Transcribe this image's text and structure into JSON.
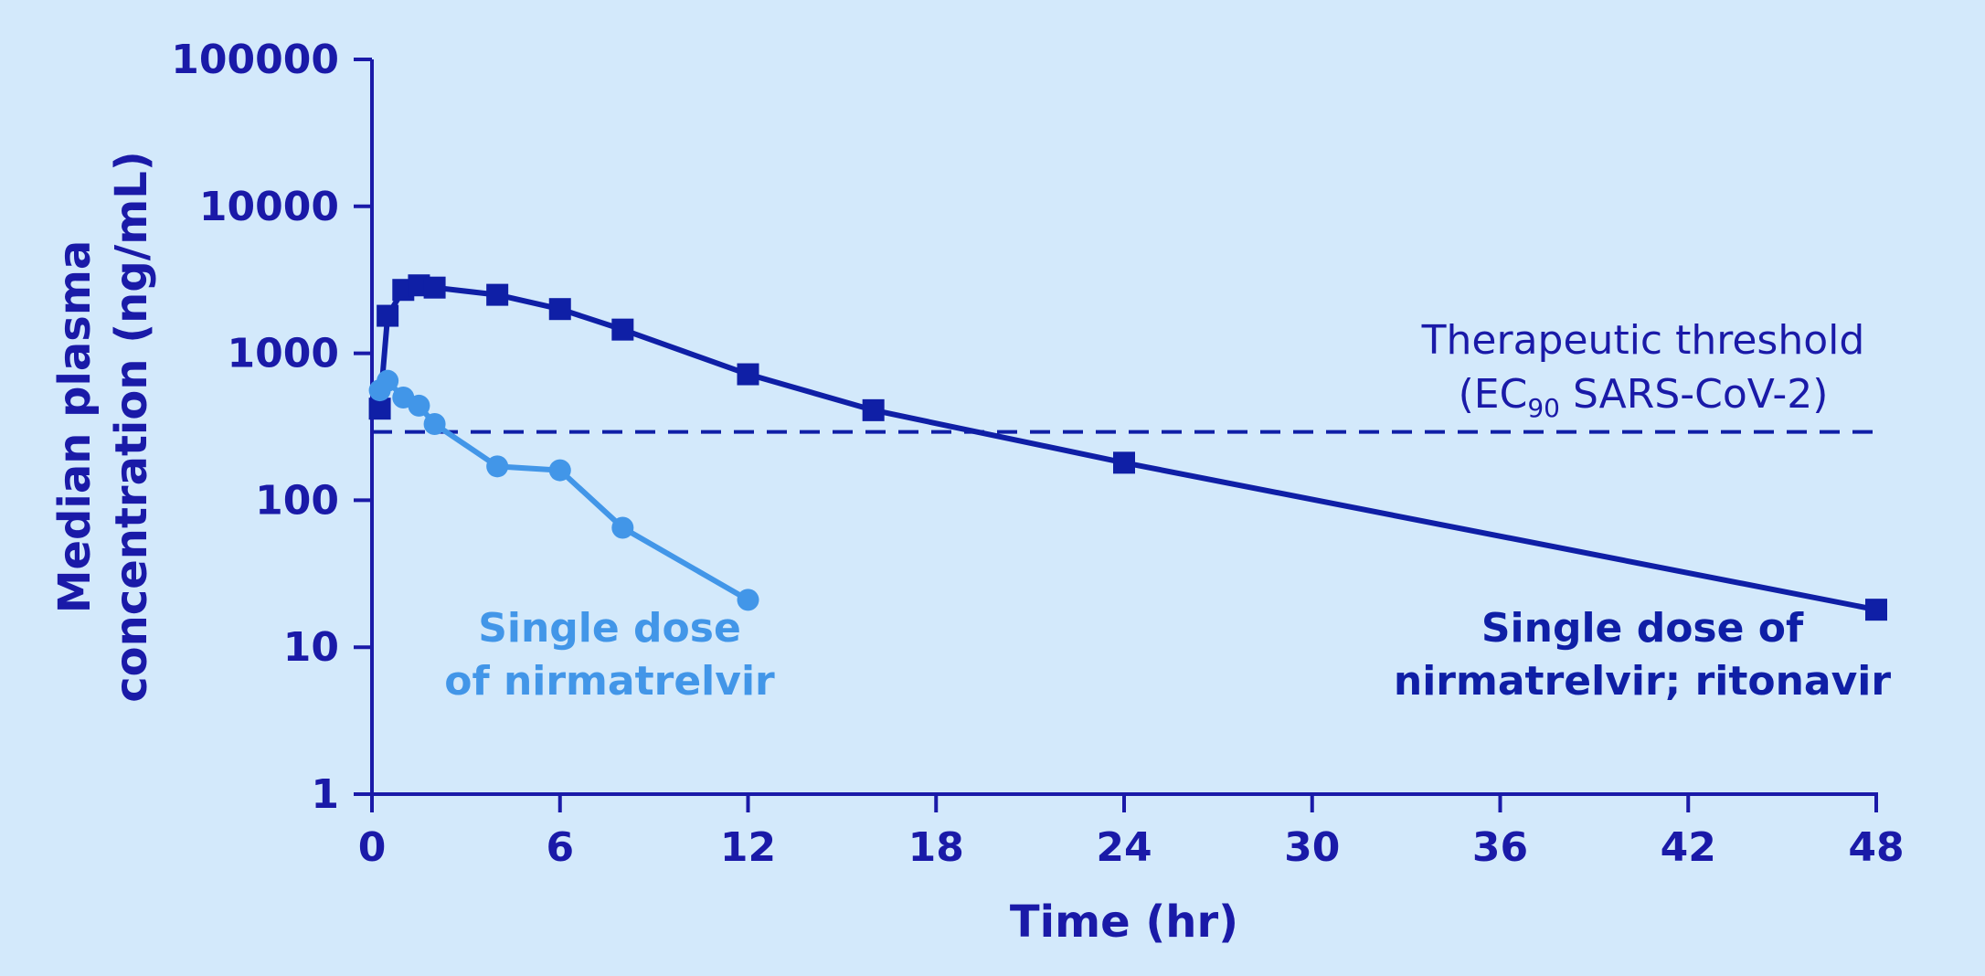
{
  "chart_data": {
    "type": "line",
    "xlabel": "Time (hr)",
    "ylabel_lines": [
      "Median plasma",
      "concentration (ng/mL)"
    ],
    "xlim": [
      0,
      48
    ],
    "ylim": [
      1,
      100000
    ],
    "yscale": "log",
    "x_ticks": [
      0,
      6,
      12,
      18,
      24,
      30,
      36,
      42,
      48
    ],
    "x_tick_labels": [
      "0",
      "6",
      "12",
      "18",
      "24",
      "30",
      "36",
      "42",
      "48"
    ],
    "y_ticks": [
      1,
      10,
      100,
      1000,
      10000,
      100000
    ],
    "y_tick_labels": [
      "1",
      "10",
      "100",
      "1000",
      "10000",
      "100000"
    ],
    "grid": false,
    "colors": {
      "dark": "#0f1fa6",
      "light": "#4296e8",
      "axis": "#1a1aa8",
      "background": "#d3e9fb"
    },
    "series": [
      {
        "marker": "square",
        "color": "#0f1fa6",
        "x": [
          0.25,
          0.5,
          1,
          1.5,
          2,
          4,
          6,
          8,
          12,
          16,
          24,
          48
        ],
        "y": [
          420,
          1800,
          2700,
          2900,
          2800,
          2500,
          2000,
          1450,
          720,
          410,
          180,
          18
        ]
      },
      {
        "marker": "circle",
        "color": "#4296e8",
        "x": [
          0.25,
          0.5,
          1,
          1.5,
          2,
          4,
          6,
          8,
          12
        ],
        "y": [
          560,
          650,
          500,
          440,
          330,
          170,
          160,
          65,
          21
        ]
      }
    ],
    "annotations": {
      "dark_series_label": [
        "Single dose of",
        "nirmatrelvir; ritonavir"
      ],
      "light_series_label": [
        "Single dose",
        "of nirmatrelvir"
      ],
      "threshold_line1": "Therapeutic threshold",
      "threshold_line2_prefix": "(EC",
      "threshold_line2_sub": "90",
      "threshold_line2_suffix": " SARS-CoV-2)"
    },
    "threshold": {
      "value": 292,
      "style": "dashed"
    }
  }
}
